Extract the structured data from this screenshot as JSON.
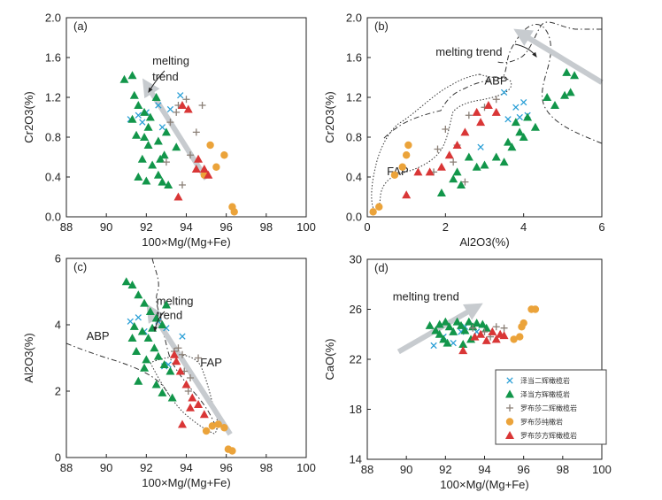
{
  "figure_caption": "",
  "colors": {
    "px": "#2a9fd6",
    "pyxtri": "#12964a",
    "lpx": "#8a7f76",
    "ld": "#eba33a",
    "ltri": "#d93636",
    "arrow": "#c7cbcf",
    "boundary": "#333333"
  },
  "legend": {
    "entries": [
      {
        "key": "px",
        "label": "泽当二辉橄榄岩",
        "marker": "cross-x"
      },
      {
        "key": "pyxtri",
        "label": "泽当方辉橄榄岩",
        "marker": "triangle"
      },
      {
        "key": "lpx",
        "label": "罗布莎二辉橄榄岩",
        "marker": "plus"
      },
      {
        "key": "ld",
        "label": "罗布莎纯橄岩",
        "marker": "circle"
      },
      {
        "key": "ltri",
        "label": "罗布莎方辉橄榄岩",
        "marker": "triangle"
      }
    ]
  },
  "chart_data": [
    {
      "id": "a",
      "panel_label": "(a)",
      "type": "scatter",
      "xlabel": "100×Mg/(Mg+Fe)",
      "ylabel": "Cr2O3(%)",
      "xlim": [
        88,
        100
      ],
      "ylim": [
        0,
        2.0
      ],
      "xticks": [
        "88",
        "90",
        "92",
        "94",
        "96",
        "98",
        "100"
      ],
      "yticks": [
        "0.0",
        "0.4",
        "0.8",
        "1.2",
        "1.6",
        "2.0"
      ],
      "annotations": [
        {
          "text": "melting",
          "x": 92.3,
          "y": 1.53
        },
        {
          "text": "trend",
          "x": 92.3,
          "y": 1.37
        }
      ],
      "trend_arrow": {
        "from": [
          95.0,
          0.38
        ],
        "to": [
          92.0,
          1.33
        ]
      },
      "series": {
        "px": [
          [
            91.2,
            0.98
          ],
          [
            91.6,
            1.02
          ],
          [
            92.0,
            1.05
          ],
          [
            92.6,
            1.12
          ],
          [
            93.2,
            1.08
          ],
          [
            93.7,
            1.22
          ],
          [
            92.8,
            0.9
          ],
          [
            91.8,
            0.95
          ]
        ],
        "pyxtri": [
          [
            90.9,
            1.38
          ],
          [
            91.3,
            1.42
          ],
          [
            91.4,
            1.22
          ],
          [
            91.6,
            1.12
          ],
          [
            91.9,
            1.05
          ],
          [
            92.2,
            1.0
          ],
          [
            91.5,
            0.82
          ],
          [
            91.9,
            0.8
          ],
          [
            92.1,
            0.72
          ],
          [
            92.6,
            0.76
          ],
          [
            92.9,
            0.62
          ],
          [
            91.8,
            0.58
          ],
          [
            92.3,
            0.52
          ],
          [
            92.6,
            0.42
          ],
          [
            92.8,
            0.35
          ],
          [
            93.1,
            0.32
          ],
          [
            91.6,
            0.4
          ],
          [
            92.0,
            0.36
          ],
          [
            92.1,
            0.9
          ],
          [
            92.5,
            1.2
          ],
          [
            93.0,
            0.85
          ],
          [
            93.5,
            0.7
          ],
          [
            91.3,
            0.98
          ],
          [
            92.7,
            0.58
          ]
        ],
        "lpx": [
          [
            93.2,
            0.95
          ],
          [
            93.6,
            1.12
          ],
          [
            94.0,
            1.18
          ],
          [
            94.5,
            0.85
          ],
          [
            94.2,
            0.62
          ],
          [
            93.0,
            0.55
          ],
          [
            93.8,
            0.32
          ],
          [
            94.8,
            1.12
          ],
          [
            93.5,
            1.05
          ]
        ],
        "ld": [
          [
            94.9,
            0.42
          ],
          [
            95.2,
            0.72
          ],
          [
            95.5,
            0.5
          ],
          [
            95.9,
            0.62
          ],
          [
            96.3,
            0.1
          ],
          [
            96.4,
            0.05
          ]
        ],
        "ltri": [
          [
            93.8,
            1.12
          ],
          [
            94.1,
            1.08
          ],
          [
            94.6,
            0.58
          ],
          [
            94.9,
            0.48
          ],
          [
            95.1,
            0.42
          ],
          [
            94.5,
            0.48
          ],
          [
            93.6,
            0.2
          ]
        ]
      }
    },
    {
      "id": "b",
      "panel_label": "(b)",
      "type": "scatter",
      "xlabel": "Al2O3(%)",
      "ylabel": "Cr2O3(%)",
      "xlim": [
        0,
        6
      ],
      "ylim": [
        0,
        2.0
      ],
      "xticks": [
        "0",
        "2",
        "4",
        "6"
      ],
      "yticks": [
        "0.0",
        "0.4",
        "0.8",
        "1.2",
        "1.6",
        "2.0"
      ],
      "annotations": [
        {
          "text": "melting trend",
          "x": 1.75,
          "y": 1.62
        },
        {
          "text": "ABP",
          "x": 3.0,
          "y": 1.33
        },
        {
          "text": "FAP",
          "x": 0.5,
          "y": 0.42
        }
      ],
      "trend_arrow": {
        "from": [
          6.0,
          1.35
        ],
        "to": [
          3.9,
          1.85
        ]
      },
      "series": {
        "px": [
          [
            2.9,
            0.7
          ],
          [
            3.5,
            1.25
          ],
          [
            3.8,
            1.1
          ],
          [
            4.0,
            1.15
          ],
          [
            4.1,
            1.02
          ],
          [
            3.6,
            0.98
          ],
          [
            3.9,
            1.0
          ]
        ],
        "pyxtri": [
          [
            1.9,
            0.24
          ],
          [
            2.2,
            0.38
          ],
          [
            2.4,
            0.32
          ],
          [
            2.3,
            0.45
          ],
          [
            2.6,
            0.6
          ],
          [
            2.8,
            0.5
          ],
          [
            3.0,
            0.52
          ],
          [
            3.3,
            0.6
          ],
          [
            3.5,
            0.55
          ],
          [
            3.7,
            0.7
          ],
          [
            3.9,
            0.85
          ],
          [
            4.1,
            1.0
          ],
          [
            4.3,
            0.9
          ],
          [
            4.6,
            1.2
          ],
          [
            4.8,
            1.12
          ],
          [
            5.1,
            1.45
          ],
          [
            5.3,
            1.42
          ],
          [
            5.2,
            1.25
          ],
          [
            5.05,
            1.22
          ],
          [
            3.6,
            0.75
          ],
          [
            4.0,
            0.8
          ],
          [
            3.8,
            0.95
          ]
        ],
        "lpx": [
          [
            1.7,
            0.45
          ],
          [
            1.8,
            0.68
          ],
          [
            2.0,
            0.88
          ],
          [
            2.3,
            0.72
          ],
          [
            2.6,
            1.02
          ],
          [
            3.0,
            1.1
          ],
          [
            3.3,
            1.18
          ],
          [
            2.2,
            0.55
          ],
          [
            2.5,
            0.35
          ]
        ],
        "ld": [
          [
            0.15,
            0.05
          ],
          [
            0.3,
            0.1
          ],
          [
            0.7,
            0.42
          ],
          [
            0.9,
            0.5
          ],
          [
            1.0,
            0.62
          ],
          [
            1.05,
            0.72
          ]
        ],
        "ltri": [
          [
            1.0,
            0.22
          ],
          [
            1.3,
            0.45
          ],
          [
            1.6,
            0.45
          ],
          [
            1.9,
            0.5
          ],
          [
            2.1,
            0.62
          ],
          [
            2.3,
            0.72
          ],
          [
            2.5,
            0.85
          ],
          [
            2.8,
            1.05
          ],
          [
            3.1,
            1.12
          ],
          [
            3.3,
            1.05
          ],
          [
            2.9,
            0.95
          ]
        ]
      }
    },
    {
      "id": "c",
      "panel_label": "(c)",
      "type": "scatter",
      "xlabel": "100×Mg/(Mg+Fe)",
      "ylabel": "Al2O3(%)",
      "xlim": [
        88,
        100
      ],
      "ylim": [
        0,
        6
      ],
      "xticks": [
        "88",
        "90",
        "92",
        "94",
        "96",
        "98",
        "100"
      ],
      "yticks": [
        "0",
        "2",
        "4",
        "6"
      ],
      "annotations": [
        {
          "text": "melting",
          "x": 92.5,
          "y": 4.6
        },
        {
          "text": "trend",
          "x": 92.5,
          "y": 4.18
        },
        {
          "text": "ABP",
          "x": 89.0,
          "y": 3.55
        },
        {
          "text": "FAP",
          "x": 94.7,
          "y": 2.75
        }
      ],
      "trend_arrow": {
        "from": [
          96.2,
          0.7
        ],
        "to": [
          92.2,
          4.45
        ]
      },
      "series": {
        "px": [
          [
            91.2,
            4.1
          ],
          [
            91.6,
            4.22
          ],
          [
            92.6,
            4.1
          ],
          [
            93.0,
            3.9
          ],
          [
            93.8,
            3.65
          ],
          [
            93.1,
            2.8
          ],
          [
            92.9,
            2.75
          ],
          [
            91.9,
            3.8
          ]
        ],
        "pyxtri": [
          [
            91.0,
            5.3
          ],
          [
            91.3,
            5.2
          ],
          [
            91.6,
            4.9
          ],
          [
            91.9,
            4.65
          ],
          [
            92.2,
            4.4
          ],
          [
            92.5,
            4.2
          ],
          [
            92.8,
            4.0
          ],
          [
            91.4,
            3.95
          ],
          [
            91.8,
            3.8
          ],
          [
            92.1,
            3.6
          ],
          [
            92.4,
            3.3
          ],
          [
            92.6,
            3.05
          ],
          [
            92.9,
            2.8
          ],
          [
            93.2,
            2.6
          ],
          [
            91.5,
            3.2
          ],
          [
            91.9,
            2.7
          ],
          [
            91.6,
            2.3
          ],
          [
            92.5,
            2.2
          ],
          [
            92.8,
            1.95
          ],
          [
            93.3,
            1.8
          ],
          [
            93.0,
            4.6
          ],
          [
            92.3,
            3.9
          ],
          [
            91.3,
            3.6
          ],
          [
            92.0,
            2.95
          ]
        ],
        "lpx": [
          [
            93.4,
            3.2
          ],
          [
            93.8,
            3.1
          ],
          [
            94.2,
            2.4
          ],
          [
            94.6,
            3.0
          ],
          [
            94.1,
            2.0
          ],
          [
            93.6,
            3.3
          ],
          [
            93.9,
            2.6
          ]
        ],
        "ld": [
          [
            95.0,
            0.8
          ],
          [
            95.3,
            0.95
          ],
          [
            95.6,
            1.0
          ],
          [
            95.9,
            0.9
          ],
          [
            96.1,
            0.25
          ],
          [
            96.3,
            0.2
          ]
        ],
        "ltri": [
          [
            93.4,
            3.1
          ],
          [
            93.7,
            2.6
          ],
          [
            94.0,
            2.2
          ],
          [
            94.3,
            1.8
          ],
          [
            94.6,
            1.6
          ],
          [
            94.9,
            1.3
          ],
          [
            94.2,
            1.5
          ],
          [
            93.8,
            1.0
          ],
          [
            93.5,
            2.9
          ]
        ]
      }
    },
    {
      "id": "d",
      "panel_label": "(d)",
      "type": "scatter",
      "xlabel": "100×Mg/(Mg+Fe)",
      "ylabel": "CaO(%)",
      "xlim": [
        88,
        100
      ],
      "ylim": [
        14,
        30
      ],
      "xticks": [
        "88",
        "90",
        "92",
        "94",
        "96",
        "98",
        "100"
      ],
      "yticks": [
        "14",
        "18",
        "22",
        "26",
        "30"
      ],
      "annotations": [
        {
          "text": "melting trend",
          "x": 89.3,
          "y": 26.7
        }
      ],
      "trend_arrow": {
        "from": [
          89.6,
          22.6
        ],
        "to": [
          93.6,
          26.2
        ]
      },
      "series": {
        "px": [
          [
            91.4,
            23.1
          ],
          [
            92.4,
            23.3
          ],
          [
            92.8,
            24.2
          ],
          [
            93.0,
            24.6
          ],
          [
            93.6,
            24.2
          ],
          [
            91.9,
            23.8
          ]
        ],
        "pyxtri": [
          [
            91.2,
            24.7
          ],
          [
            91.5,
            24.3
          ],
          [
            91.7,
            24.0
          ],
          [
            91.9,
            23.6
          ],
          [
            92.0,
            25.0
          ],
          [
            92.2,
            24.6
          ],
          [
            92.4,
            24.2
          ],
          [
            92.6,
            25.0
          ],
          [
            92.8,
            24.7
          ],
          [
            93.0,
            24.3
          ],
          [
            93.2,
            25.0
          ],
          [
            93.4,
            24.6
          ],
          [
            93.6,
            24.9
          ],
          [
            93.9,
            24.8
          ],
          [
            94.1,
            24.5
          ],
          [
            92.1,
            23.3
          ],
          [
            91.7,
            24.8
          ],
          [
            92.9,
            23.2
          ],
          [
            93.3,
            23.6
          ]
        ],
        "lpx": [
          [
            93.4,
            24.5
          ],
          [
            94.0,
            24.2
          ],
          [
            94.6,
            24.6
          ],
          [
            95.0,
            24.5
          ],
          [
            94.3,
            23.8
          ]
        ],
        "ld": [
          [
            95.5,
            23.6
          ],
          [
            95.8,
            23.8
          ],
          [
            96.0,
            24.9
          ],
          [
            96.4,
            26.0
          ],
          [
            96.6,
            26.0
          ],
          [
            95.9,
            24.6
          ]
        ],
        "ltri": [
          [
            92.9,
            22.7
          ],
          [
            93.5,
            23.8
          ],
          [
            93.8,
            24.0
          ],
          [
            94.1,
            23.5
          ],
          [
            94.4,
            24.2
          ],
          [
            94.8,
            24.0
          ],
          [
            95.0,
            23.9
          ],
          [
            94.6,
            23.6
          ]
        ]
      }
    }
  ]
}
